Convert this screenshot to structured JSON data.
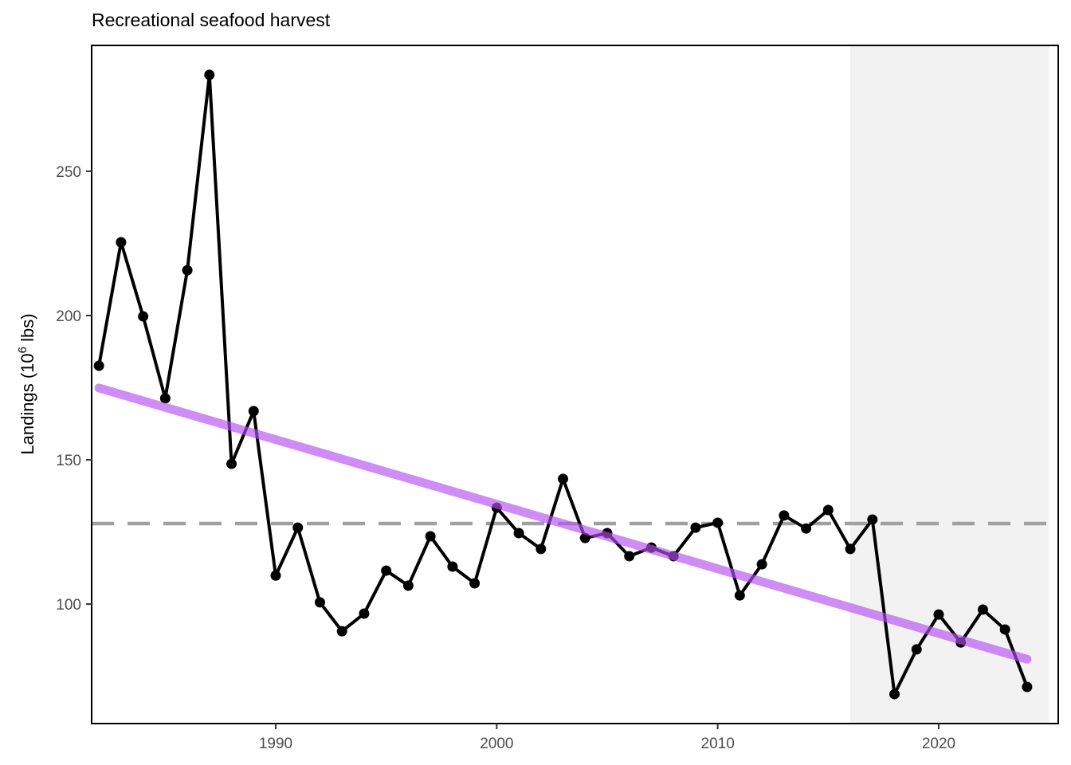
{
  "chart_data": {
    "type": "line",
    "title": "Recreational seafood harvest",
    "xlabel": "",
    "ylabel": "Landings (10",
    "ylabel_sup": "6",
    "ylabel_suffix": " lbs)",
    "xlim": [
      1981.67,
      2025.41
    ],
    "ylim": [
      58.6,
      293.6
    ],
    "x_ticks": [
      1990,
      2000,
      2010,
      2020
    ],
    "y_ticks": [
      100,
      150,
      200,
      250
    ],
    "grid": false,
    "x": [
      1982,
      1983,
      1984,
      1985,
      1986,
      1987,
      1988,
      1989,
      1990,
      1991,
      1992,
      1993,
      1994,
      1995,
      1996,
      1997,
      1998,
      1999,
      2000,
      2001,
      2002,
      2003,
      2004,
      2005,
      2006,
      2007,
      2008,
      2009,
      2010,
      2011,
      2012,
      2013,
      2014,
      2015,
      2016,
      2017,
      2018,
      2019,
      2020,
      2021,
      2022,
      2023,
      2024
    ],
    "values": [
      182.6,
      225.4,
      199.7,
      171.3,
      215.7,
      283.4,
      148.6,
      166.9,
      109.9,
      126.5,
      100.6,
      90.6,
      96.7,
      111.6,
      106.4,
      123.5,
      113.0,
      107.2,
      133.4,
      124.6,
      119.1,
      143.4,
      122.9,
      124.6,
      116.6,
      119.6,
      116.6,
      126.5,
      128.2,
      103.0,
      113.8,
      130.7,
      126.2,
      132.6,
      119.1,
      129.3,
      68.8,
      84.3,
      96.4,
      86.7,
      98.1,
      91.2,
      71.3
    ],
    "mean_line": 127.9,
    "trend_line": {
      "x": [
        1982,
        2024
      ],
      "y": [
        174.9,
        80.9
      ]
    },
    "shaded_region": {
      "x": [
        2016,
        2025
      ]
    },
    "colors": {
      "series": "#000000",
      "trend": "#b54ff0",
      "mean": "#a0a0a0",
      "shade": "#f2f2f2"
    }
  }
}
